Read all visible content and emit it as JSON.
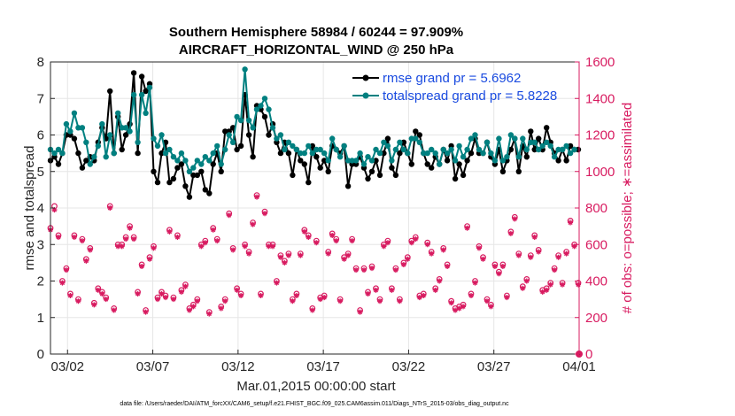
{
  "colors": {
    "rmse": "#000000",
    "spread": "#008080",
    "obs": "#d81b60",
    "legend_text": "#1a4be0",
    "axis": "#262626",
    "grid": "#e6e6e6"
  },
  "chart_data": {
    "type": "line",
    "title": "Southern Hemisphere 58984 / 60244 = 97.909%",
    "subtitle": "AIRCRAFT_HORIZONTAL_WIND @ 250 hPa",
    "xlabel": "Mar.01,2015 00:00:00 start",
    "ylabel_left": "rmse and totalspread",
    "ylabel_right": "# of obs: o=possible; ∗=assimilated",
    "footnote": "data file: /Users/raeder/DAI/ATM_forcXX/CAM6_setup/f.e21.FHIST_BGC.f09_025.CAM6assim.011/Diags_NTrS_2015-03/obs_diag_output.nc",
    "xlim": [
      0,
      31
    ],
    "ylim_left": [
      0,
      8
    ],
    "ylim_right": [
      0,
      1600
    ],
    "x_ticks": [
      1,
      6,
      11,
      16,
      21,
      26,
      31
    ],
    "x_tick_labels": [
      "03/02",
      "03/07",
      "03/12",
      "03/17",
      "03/22",
      "03/27",
      "04/01"
    ],
    "y_ticks_left": [
      "0",
      "1",
      "2",
      "3",
      "4",
      "5",
      "6",
      "7",
      "8"
    ],
    "y_ticks_right": [
      "0",
      "200",
      "400",
      "600",
      "800",
      "1000",
      "1200",
      "1400",
      "1600"
    ],
    "legend": [
      "rmse grand pr = 5.6962",
      "totalspread grand pr = 5.8228"
    ],
    "rmse": [
      5.3,
      5.4,
      5.2,
      5.5,
      6.0,
      6.0,
      5.9,
      5.5,
      5.1,
      5.3,
      5.4,
      5.3,
      5.8,
      6.2,
      5.9,
      7.2,
      5.5,
      6.5,
      5.6,
      6.0,
      6.3,
      7.7,
      5.5,
      7.6,
      7.2,
      7.4,
      5.0,
      4.7,
      5.5,
      5.8,
      4.7,
      4.8,
      5.1,
      5.2,
      4.6,
      4.3,
      4.9,
      4.9,
      5.0,
      4.5,
      4.4,
      5.2,
      5.5,
      5.0,
      6.1,
      6.1,
      6.2,
      5.6,
      5.7,
      7.1,
      6.0,
      5.4,
      6.8,
      6.7,
      6.5,
      6.0,
      6.3,
      5.8,
      5.5,
      5.8,
      5.5,
      4.9,
      5.6,
      5.3,
      5.2,
      4.7,
      5.7,
      5.4,
      5.1,
      5.3,
      5.0,
      5.7,
      5.6,
      5.5,
      5.7,
      4.6,
      5.2,
      5.2,
      5.4,
      5.1,
      4.8,
      5.0,
      5.3,
      4.9,
      5.5,
      5.9,
      5.1,
      4.9,
      5.5,
      5.8,
      5.5,
      5.2,
      6.1,
      6.0,
      5.5,
      5.2,
      5.1,
      5.4,
      5.2,
      5.6,
      5.3,
      5.7,
      4.8,
      5.2,
      4.9,
      5.3,
      5.5,
      5.9,
      5.5,
      5.5,
      5.8,
      5.4,
      5.2,
      5.6,
      5.0,
      5.3,
      5.6,
      5.9,
      5.0,
      5.7,
      5.4,
      6.1,
      5.6,
      5.9,
      5.6,
      6.2,
      5.8,
      5.5,
      5.3,
      5.6,
      5.3,
      5.7,
      5.6,
      5.6
    ],
    "totalspread": [
      5.6,
      5.5,
      5.6,
      5.5,
      6.3,
      6.1,
      6.6,
      6.2,
      6.2,
      5.8,
      5.2,
      5.4,
      5.7,
      6.3,
      5.4,
      6.0,
      5.5,
      6.6,
      6.2,
      6.2,
      6.1,
      7.1,
      5.8,
      7.1,
      6.6,
      7.3,
      5.9,
      5.7,
      6.0,
      5.5,
      5.6,
      5.4,
      5.3,
      5.5,
      5.3,
      5.0,
      5.1,
      5.3,
      5.2,
      5.4,
      5.3,
      5.5,
      5.7,
      5.2,
      5.6,
      6.0,
      5.8,
      6.5,
      6.4,
      7.8,
      6.4,
      6.2,
      6.7,
      6.8,
      7.0,
      6.7,
      6.2,
      5.9,
      6.0,
      5.6,
      5.8,
      5.7,
      5.6,
      5.5,
      5.5,
      5.7,
      5.5,
      5.6,
      5.6,
      5.5,
      5.3,
      5.9,
      5.6,
      5.4,
      5.7,
      5.3,
      5.3,
      5.3,
      5.5,
      5.2,
      5.4,
      5.3,
      5.6,
      5.5,
      5.8,
      5.7,
      5.3,
      5.6,
      5.8,
      5.6,
      5.5,
      5.9,
      5.9,
      5.8,
      5.5,
      5.5,
      5.6,
      5.5,
      5.2,
      5.6,
      5.5,
      5.6,
      5.3,
      5.7,
      5.4,
      5.6,
      5.9,
      6.0,
      5.6,
      5.5,
      5.8,
      5.5,
      5.3,
      5.9,
      5.3,
      5.4,
      6.0,
      5.9,
      5.4,
      5.9,
      5.6,
      5.8,
      5.8,
      5.6,
      5.7,
      5.8,
      5.7,
      5.4,
      5.6,
      5.6,
      5.7,
      5.5,
      5.6
    ],
    "obs_possible": [
      690,
      810,
      650,
      400,
      470,
      330,
      650,
      300,
      630,
      520,
      580,
      280,
      360,
      340,
      310,
      810,
      250,
      600,
      600,
      640,
      700,
      640,
      340,
      490,
      240,
      530,
      590,
      310,
      340,
      320,
      680,
      310,
      650,
      350,
      380,
      250,
      270,
      300,
      600,
      620,
      230,
      690,
      630,
      260,
      300,
      770,
      580,
      360,
      330,
      600,
      560,
      720,
      870,
      330,
      780,
      600,
      600,
      400,
      540,
      510,
      550,
      300,
      330,
      550,
      680,
      650,
      250,
      620,
      310,
      320,
      560,
      660,
      630,
      300,
      530,
      550,
      630,
      470,
      240,
      470,
      340,
      480,
      360,
      300,
      600,
      620,
      360,
      470,
      300,
      500,
      530,
      620,
      640,
      320,
      330,
      610,
      560,
      360,
      410,
      580,
      490,
      290,
      250,
      260,
      270,
      700,
      330,
      400,
      590,
      530,
      300,
      270,
      490,
      450,
      490,
      320,
      670,
      750,
      550,
      370,
      410,
      540,
      650,
      570,
      350,
      360,
      390,
      470,
      540,
      390,
      560,
      730,
      600,
      390
    ],
    "obs_assimilated": [
      680,
      790,
      640,
      390,
      460,
      320,
      640,
      290,
      620,
      510,
      570,
      270,
      350,
      330,
      300,
      800,
      240,
      590,
      590,
      630,
      690,
      630,
      330,
      480,
      230,
      520,
      580,
      300,
      330,
      310,
      670,
      300,
      640,
      340,
      370,
      240,
      260,
      290,
      590,
      610,
      220,
      680,
      620,
      250,
      290,
      760,
      570,
      350,
      320,
      590,
      550,
      710,
      860,
      320,
      770,
      590,
      590,
      390,
      530,
      500,
      540,
      290,
      320,
      540,
      670,
      640,
      240,
      610,
      300,
      310,
      550,
      650,
      620,
      290,
      520,
      540,
      620,
      460,
      230,
      460,
      330,
      470,
      350,
      290,
      590,
      610,
      350,
      460,
      290,
      490,
      520,
      610,
      630,
      310,
      320,
      600,
      550,
      350,
      400,
      570,
      480,
      280,
      240,
      250,
      260,
      690,
      320,
      390,
      580,
      520,
      290,
      260,
      480,
      440,
      480,
      310,
      660,
      740,
      540,
      360,
      400,
      530,
      640,
      560,
      340,
      350,
      380,
      460,
      530,
      380,
      550,
      720,
      590,
      380
    ]
  }
}
